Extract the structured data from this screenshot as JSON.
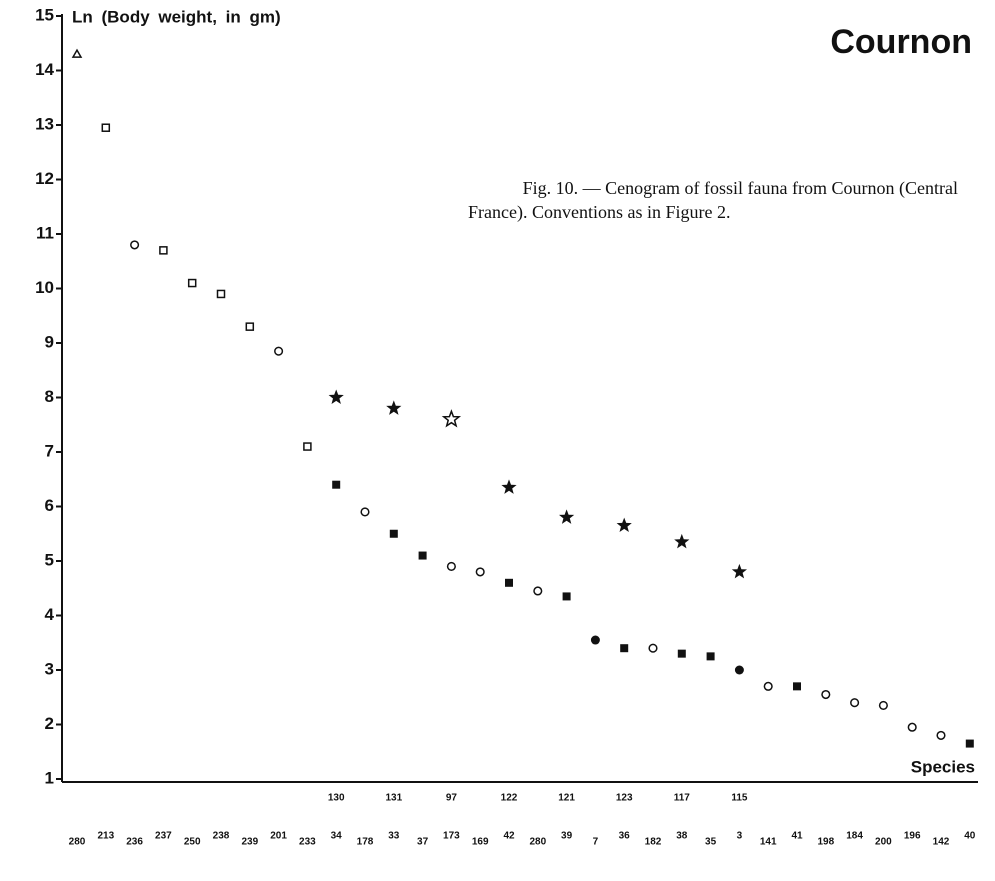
{
  "chart_data": {
    "type": "scatter",
    "title": "Cournon",
    "y_label": "Ln (Body weight, in gm)",
    "x_label": "Species",
    "caption": [
      "Fig. 10. — Cenogram of fossil fauna from Cournon (Central",
      "France). Conventions as in Figure 2."
    ],
    "categories": [
      "280",
      "213",
      "236",
      "237",
      "250",
      "238",
      "239",
      "201",
      "233",
      "34",
      "178",
      "33",
      "37",
      "173",
      "169",
      "42",
      "280",
      "39",
      "7",
      "36",
      "182",
      "38",
      "35",
      "3",
      "141",
      "41",
      "198",
      "184",
      "200",
      "196",
      "142",
      "40"
    ],
    "top_labels": [
      null,
      null,
      null,
      null,
      null,
      null,
      null,
      null,
      null,
      "130",
      null,
      "131",
      null,
      "97",
      null,
      "122",
      null,
      "121",
      null,
      "123",
      null,
      "117",
      null,
      "115",
      null,
      null,
      null,
      null,
      null,
      null,
      null,
      null
    ],
    "ylim": [
      1,
      15
    ],
    "yticks": [
      1,
      2,
      3,
      4,
      5,
      6,
      7,
      8,
      9,
      10,
      11,
      12,
      13,
      14,
      15
    ],
    "series": [
      {
        "marker": "triangle-open",
        "color": "#111",
        "values": [
          14.3,
          null,
          null,
          null,
          null,
          null,
          null,
          null,
          null,
          null,
          null,
          null,
          null,
          null,
          null,
          null,
          null,
          null,
          null,
          null,
          null,
          null,
          null,
          null,
          null,
          null,
          null,
          null,
          null,
          null,
          null,
          null
        ]
      },
      {
        "marker": "square-open",
        "color": "#111",
        "values": [
          null,
          12.95,
          null,
          10.7,
          10.1,
          9.9,
          9.3,
          null,
          7.1,
          null,
          null,
          null,
          null,
          null,
          null,
          null,
          null,
          null,
          null,
          null,
          null,
          null,
          null,
          null,
          null,
          null,
          null,
          null,
          null,
          null,
          null,
          null
        ]
      },
      {
        "marker": "circle-open",
        "color": "#111",
        "values": [
          null,
          null,
          10.8,
          null,
          null,
          null,
          null,
          8.85,
          null,
          null,
          5.9,
          null,
          null,
          4.9,
          4.8,
          null,
          4.45,
          null,
          null,
          null,
          3.4,
          null,
          null,
          null,
          2.7,
          null,
          2.55,
          2.4,
          2.35,
          1.95,
          1.8,
          null
        ]
      },
      {
        "marker": "star-filled",
        "color": "#111",
        "values": [
          null,
          null,
          null,
          null,
          null,
          null,
          null,
          null,
          null,
          8.0,
          null,
          7.8,
          null,
          null,
          null,
          6.35,
          null,
          5.8,
          null,
          5.65,
          null,
          5.35,
          null,
          4.8,
          null,
          null,
          null,
          null,
          null,
          null,
          null,
          null
        ]
      },
      {
        "marker": "star-open",
        "color": "#111",
        "values": [
          null,
          null,
          null,
          null,
          null,
          null,
          null,
          null,
          null,
          null,
          null,
          null,
          null,
          7.6,
          null,
          null,
          null,
          null,
          null,
          null,
          null,
          null,
          null,
          null,
          null,
          null,
          null,
          null,
          null,
          null,
          null,
          null
        ]
      },
      {
        "marker": "square-filled",
        "color": "#111",
        "values": [
          null,
          null,
          null,
          null,
          null,
          null,
          null,
          null,
          null,
          6.4,
          null,
          5.5,
          5.1,
          null,
          null,
          4.6,
          null,
          4.35,
          null,
          3.4,
          null,
          3.3,
          3.25,
          null,
          null,
          2.7,
          null,
          null,
          null,
          null,
          null,
          1.65
        ]
      },
      {
        "marker": "circle-filled",
        "color": "#111",
        "values": [
          null,
          null,
          null,
          null,
          null,
          null,
          null,
          null,
          null,
          null,
          null,
          null,
          null,
          null,
          null,
          null,
          null,
          null,
          3.55,
          null,
          null,
          null,
          null,
          3.0,
          null,
          null,
          null,
          null,
          null,
          null,
          null,
          null
        ]
      }
    ]
  }
}
